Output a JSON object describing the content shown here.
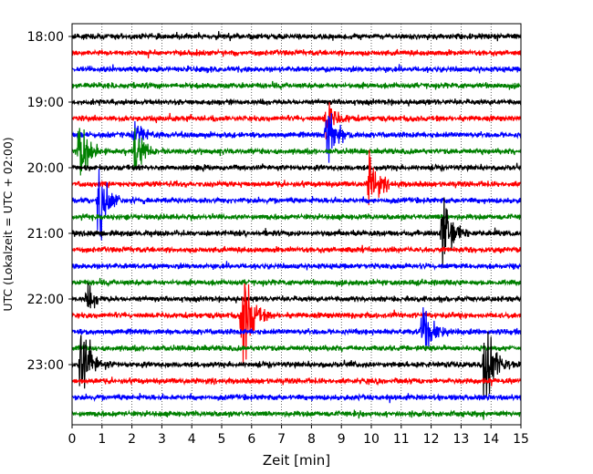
{
  "chart_data": {
    "type": "line",
    "title": "",
    "xlabel": "Zeit  [min]",
    "ylabel": "UTC (Lokalzeit = UTC + 02:00)",
    "xlim": [
      0,
      15
    ],
    "xticks": [
      "0",
      "1",
      "2",
      "3",
      "4",
      "5",
      "6",
      "7",
      "8",
      "9",
      "10",
      "11",
      "12",
      "13",
      "14",
      "15"
    ],
    "yticks": [
      "18:00",
      "19:00",
      "20:00",
      "21:00",
      "22:00",
      "23:00"
    ],
    "grid": "vertical dotted",
    "start_hour": "18:00",
    "end_hour": "23:45",
    "row_minutes": 15,
    "line_colors": [
      "#000000",
      "#ff0000",
      "#0000ff",
      "#008000"
    ],
    "events": [
      {
        "row": 5,
        "t": 8.5,
        "amp": 1.5
      },
      {
        "row": 6,
        "t": 8.5,
        "amp": 2.5
      },
      {
        "row": 6,
        "t": 2.1,
        "amp": 0.8
      },
      {
        "row": 7,
        "t": 0.25,
        "amp": 2.5
      },
      {
        "row": 7,
        "t": 2.1,
        "amp": 1.6
      },
      {
        "row": 9,
        "t": 9.95,
        "amp": 1.8
      },
      {
        "row": 10,
        "t": 0.9,
        "amp": 2.3
      },
      {
        "row": 12,
        "t": 12.4,
        "amp": 3.0
      },
      {
        "row": 16,
        "t": 0.5,
        "amp": 0.8
      },
      {
        "row": 17,
        "t": 5.7,
        "amp": 3.8
      },
      {
        "row": 18,
        "t": 11.7,
        "amp": 2.2
      },
      {
        "row": 20,
        "t": 0.3,
        "amp": 2.8
      },
      {
        "row": 20,
        "t": 13.8,
        "amp": 3.0
      }
    ]
  }
}
